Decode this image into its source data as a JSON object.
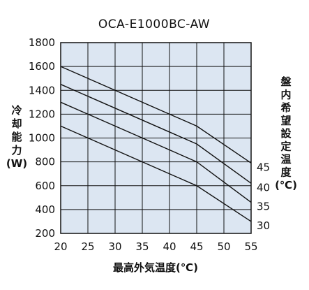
{
  "chart_data": {
    "type": "line",
    "title": "OCA-E1000BC-AW",
    "xlabel": "最高外気温度(℃)",
    "ylabel_chars": [
      "冷",
      "却",
      "能",
      "力",
      "(W)"
    ],
    "right_label_chars": [
      "盤",
      "内",
      "希",
      "望",
      "設",
      "定",
      "温",
      "度",
      "(℃)"
    ],
    "xlim": [
      20,
      55
    ],
    "ylim": [
      200,
      1800
    ],
    "xticks": [
      20,
      25,
      30,
      35,
      40,
      45,
      50,
      55
    ],
    "yticks": [
      200,
      400,
      600,
      800,
      1000,
      1200,
      1400,
      1600,
      1800
    ],
    "grid": true,
    "background_color": "#dce6f2",
    "line_color": "#111111",
    "series": [
      {
        "name": "45",
        "points": [
          [
            20,
            1600
          ],
          [
            45,
            1100
          ],
          [
            55,
            790
          ]
        ]
      },
      {
        "name": "40",
        "points": [
          [
            20,
            1450
          ],
          [
            45,
            950
          ],
          [
            55,
            620
          ]
        ]
      },
      {
        "name": "35",
        "points": [
          [
            20,
            1300
          ],
          [
            45,
            800
          ],
          [
            55,
            460
          ]
        ]
      },
      {
        "name": "30",
        "points": [
          [
            20,
            1100
          ],
          [
            45,
            600
          ],
          [
            55,
            300
          ]
        ]
      }
    ]
  }
}
